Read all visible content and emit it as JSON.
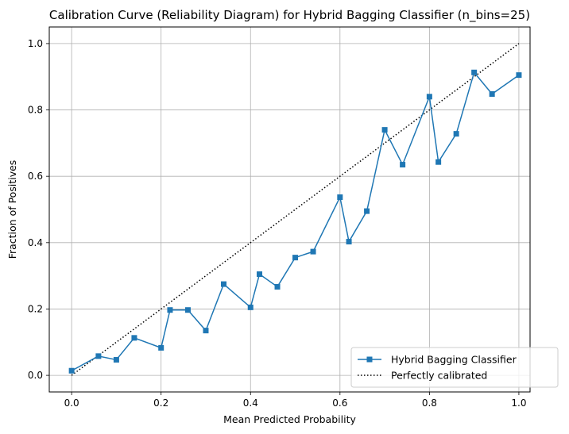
{
  "chart_data": {
    "type": "line",
    "title": "Calibration Curve (Reliability Diagram) for Hybrid Bagging Classifier (n_bins=25)",
    "xlabel": "Mean Predicted Probability",
    "ylabel": "Fraction of Positives",
    "xlim": [
      -0.05,
      1.025
    ],
    "ylim": [
      -0.05,
      1.05
    ],
    "xticks": [
      "0.0",
      "0.2",
      "0.4",
      "0.6",
      "0.8",
      "1.0"
    ],
    "yticks": [
      "0.0",
      "0.2",
      "0.4",
      "0.6",
      "0.8",
      "1.0"
    ],
    "grid": true,
    "legend_position": "lower right",
    "series": [
      {
        "name": "Hybrid Bagging Classifier",
        "color": "#1f77b4",
        "marker": "square",
        "line_style": "solid",
        "x": [
          0.0,
          0.06,
          0.1,
          0.14,
          0.2,
          0.22,
          0.26,
          0.3,
          0.34,
          0.4,
          0.42,
          0.46,
          0.5,
          0.54,
          0.6,
          0.62,
          0.66,
          0.7,
          0.74,
          0.8,
          0.82,
          0.86,
          0.9,
          0.94,
          1.0
        ],
        "y": [
          0.014,
          0.058,
          0.047,
          0.113,
          0.083,
          0.197,
          0.197,
          0.135,
          0.275,
          0.205,
          0.305,
          0.267,
          0.355,
          0.373,
          0.537,
          0.403,
          0.495,
          0.74,
          0.635,
          0.84,
          0.643,
          0.728,
          0.913,
          0.848,
          0.905
        ]
      },
      {
        "name": "Perfectly calibrated",
        "color": "#000000",
        "marker": "none",
        "line_style": "dotted",
        "x": [
          0,
          1
        ],
        "y": [
          0,
          1
        ]
      }
    ]
  }
}
